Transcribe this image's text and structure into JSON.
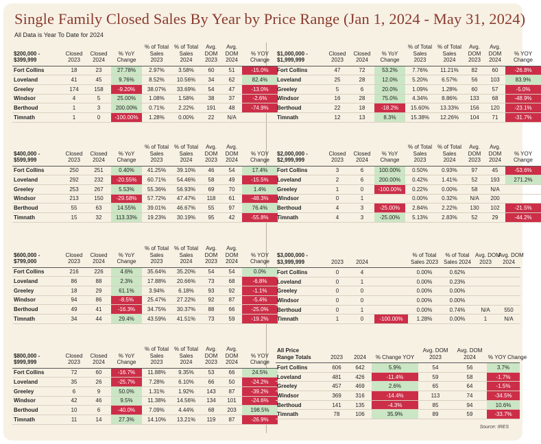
{
  "header": {
    "title": "Single Family Closed Sales By Year by Price Range (Jan 1, 2024 - May 31, 2024)",
    "subtitle": "All Data is Year To Date for 2024"
  },
  "source": "Source: IRES",
  "blocks": [
    {
      "id": "200k",
      "headers": [
        "$200,000 -\n$399,999",
        "Closed\n2023",
        "Closed\n2024",
        "% YoY\nChange",
        "% of Total\nSales\n2023",
        "% of Total\nSales\n2024",
        "Avg.\nDOM\n2023",
        "Avg.\nDOM\n2024",
        "% YOY\nChange"
      ],
      "rows": [
        {
          "cells": [
            "Fort Collins",
            "18",
            "23",
            "27.78%",
            "2.97%",
            "3.58%",
            "60",
            "51",
            "-15.0%"
          ],
          "yoy": "pos",
          "yoy2": "neg"
        },
        {
          "cells": [
            "Loveland",
            "41",
            "45",
            "9.76%",
            "8.52%",
            "10.56%",
            "34",
            "62",
            "82.4%"
          ],
          "yoy": "pos",
          "yoy2": "pos"
        },
        {
          "cells": [
            "Greeley",
            "174",
            "158",
            "-9.20%",
            "38.07%",
            "33.69%",
            "54",
            "47",
            "-13.0%"
          ],
          "yoy": "neg",
          "yoy2": "neg"
        },
        {
          "cells": [
            "Windsor",
            "4",
            "5",
            "25.00%",
            "1.08%",
            "1.58%",
            "38",
            "37",
            "-2.6%"
          ],
          "yoy": "pos",
          "yoy2": "neg"
        },
        {
          "cells": [
            "Berthoud",
            "1",
            "3",
            "200.00%",
            "0.71%",
            "2.22%",
            "191",
            "48",
            "-74.9%"
          ],
          "yoy": "pos",
          "yoy2": "neg"
        },
        {
          "cells": [
            "Timnath",
            "1",
            "0",
            "-100.00%",
            "1.28%",
            "0.00%",
            "22",
            "N/A",
            ""
          ],
          "yoy": "neg",
          "yoy2": ""
        }
      ]
    },
    {
      "id": "1m",
      "headers": [
        "$1,000,000 -\n$1,999,999",
        "Closed\n2023",
        "Closed\n2024",
        "% YoY\nChange",
        "% of Total\nSales\n2023",
        "% of Total\nSales\n2024",
        "Avg.\nDOM\n2023",
        "Avg.\nDOM\n2024",
        "% YOY\nChange"
      ],
      "rows": [
        {
          "cells": [
            "Fort Collins",
            "47",
            "72",
            "53.2%",
            "7.76%",
            "11.21%",
            "82",
            "60",
            "-26.8%"
          ],
          "yoy": "pos",
          "yoy2": "neg"
        },
        {
          "cells": [
            "Loveland",
            "25",
            "28",
            "12.0%",
            "5.20%",
            "6.57%",
            "56",
            "103",
            "83.9%"
          ],
          "yoy": "pos",
          "yoy2": "pos"
        },
        {
          "cells": [
            "Greeley",
            "5",
            "6",
            "20.0%",
            "1.09%",
            "1.28%",
            "60",
            "57",
            "-5.0%"
          ],
          "yoy": "pos",
          "yoy2": "neg"
        },
        {
          "cells": [
            "Windsor",
            "16",
            "28",
            "75.0%",
            "4.34%",
            "8.86%",
            "133",
            "68",
            "-48.9%"
          ],
          "yoy": "pos",
          "yoy2": "neg"
        },
        {
          "cells": [
            "Berthoud",
            "22",
            "18",
            "-18.2%",
            "15.60%",
            "13.33%",
            "156",
            "120",
            "-23.1%"
          ],
          "yoy": "neg",
          "yoy2": "neg"
        },
        {
          "cells": [
            "Timnath",
            "12",
            "13",
            "8.3%",
            "15.38%",
            "12.26%",
            "104",
            "71",
            "-31.7%"
          ],
          "yoy": "pos",
          "yoy2": "neg"
        }
      ]
    },
    {
      "id": "400k",
      "headers": [
        "$400,000 -\n$599,999",
        "Closed\n2023",
        "Closed\n2024",
        "% YoY\nChange",
        "% of Total\nSales\n2023",
        "% of Total\nSales\n2024",
        "Avg.\nDOM\n2023",
        "Avg.\nDOM\n2024",
        "% YOY\nChange"
      ],
      "rows": [
        {
          "cells": [
            "Fort Collins",
            "250",
            "251",
            "0.40%",
            "41.25%",
            "39.10%",
            "46",
            "54",
            "17.4%"
          ],
          "yoy": "pos",
          "yoy2": "pos"
        },
        {
          "cells": [
            "Loveland",
            "292",
            "232",
            "-20.55%",
            "60.71%",
            "54.46%",
            "58",
            "49",
            "-15.5%"
          ],
          "yoy": "neg",
          "yoy2": "neg"
        },
        {
          "cells": [
            "Greeley",
            "253",
            "267",
            "5.53%",
            "55.36%",
            "56.93%",
            "69",
            "70",
            "1.4%"
          ],
          "yoy": "pos",
          "yoy2": "pos"
        },
        {
          "cells": [
            "Windsor",
            "213",
            "150",
            "-29.58%",
            "57.72%",
            "47.47%",
            "118",
            "61",
            "-48.3%"
          ],
          "yoy": "neg",
          "yoy2": "neg"
        },
        {
          "cells": [
            "Berthoud",
            "55",
            "63",
            "14.55%",
            "39.01%",
            "46.67%",
            "55",
            "97",
            "76.4%"
          ],
          "yoy": "pos",
          "yoy2": "pos"
        },
        {
          "cells": [
            "Timnath",
            "15",
            "32",
            "113.33%",
            "19.23%",
            "30.19%",
            "95",
            "42",
            "-55.8%"
          ],
          "yoy": "pos",
          "yoy2": "neg"
        }
      ]
    },
    {
      "id": "2m",
      "headers": [
        "$2,000,000 -\n$2,999,999",
        "Closed\n2023",
        "Closed\n2024",
        "% YoY\nChange",
        "% of Total\nSales\n2023",
        "% of Total\nSales\n2024",
        "Avg.\nDOM\n2023",
        "Avg.\nDOM\n2024",
        "% YOY\nChange"
      ],
      "rows": [
        {
          "cells": [
            "Fort Collins",
            "3",
            "6",
            "100.00%",
            "0.50%",
            "0.93%",
            "97",
            "45",
            "-53.6%"
          ],
          "yoy": "pos",
          "yoy2": "neg"
        },
        {
          "cells": [
            "Loveland",
            "2",
            "6",
            "200.00%",
            "0.42%",
            "1.41%",
            "52",
            "193",
            "271.2%"
          ],
          "yoy": "pos",
          "yoy2": "pos"
        },
        {
          "cells": [
            "Greeley",
            "1",
            "0",
            "-100.00%",
            "0.22%",
            "0.00%",
            "58",
            "N/A",
            ""
          ],
          "yoy": "neg",
          "yoy2": ""
        },
        {
          "cells": [
            "Windsor",
            "0",
            "1",
            "",
            "0.00%",
            "0.32%",
            "N/A",
            "200",
            ""
          ],
          "yoy": "",
          "yoy2": ""
        },
        {
          "cells": [
            "Berthoud",
            "4",
            "3",
            "-25.00%",
            "2.84%",
            "2.22%",
            "130",
            "102",
            "-21.5%"
          ],
          "yoy": "neg",
          "yoy2": "neg"
        },
        {
          "cells": [
            "Timnath",
            "4",
            "3",
            "-25.00%",
            "5.13%",
            "2.83%",
            "52",
            "29",
            "-44.2%"
          ],
          "yoy": "pos",
          "yoy2": "neg"
        }
      ]
    },
    {
      "id": "600k",
      "headers": [
        "$600,000 -\n$799,000",
        "Closed\n2023",
        "Closed\n2024",
        "% YoY\nChange",
        "% of Total\nSales\n2023",
        "% of Total\nSales\n2024",
        "Avg.\nDOM\n2023",
        "Avg.\nDOM\n2024",
        "% YOY\nChange"
      ],
      "rows": [
        {
          "cells": [
            "Fort Collins",
            "216",
            "226",
            "4.6%",
            "35.64%",
            "35.20%",
            "54",
            "54",
            "0.0%"
          ],
          "yoy": "pos",
          "yoy2": "pos"
        },
        {
          "cells": [
            "Loveland",
            "86",
            "88",
            "2.3%",
            "17.88%",
            "20.66%",
            "73",
            "68",
            "-6.8%"
          ],
          "yoy": "pos",
          "yoy2": "neg"
        },
        {
          "cells": [
            "Greeley",
            "18",
            "29",
            "61.1%",
            "3.94%",
            "6.18%",
            "93",
            "92",
            "-1.1%"
          ],
          "yoy": "pos",
          "yoy2": "neg"
        },
        {
          "cells": [
            "Windsor",
            "94",
            "86",
            "-8.5%",
            "25.47%",
            "27.22%",
            "92",
            "87",
            "-5.4%"
          ],
          "yoy": "neg",
          "yoy2": "neg"
        },
        {
          "cells": [
            "Berthoud",
            "49",
            "41",
            "-16.3%",
            "34.75%",
            "30.37%",
            "88",
            "66",
            "-25.0%"
          ],
          "yoy": "neg",
          "yoy2": "neg"
        },
        {
          "cells": [
            "Timnath",
            "34",
            "44",
            "29.4%",
            "43.59%",
            "41.51%",
            "73",
            "59",
            "-19.2%"
          ],
          "yoy": "pos",
          "yoy2": "neg"
        }
      ]
    },
    {
      "id": "3m",
      "headers": [
        "$3,000,000 -\n$3,999,999",
        "2023",
        "2024",
        "",
        "% of Total\nSales 2023",
        "% of Total\nSales 2024",
        "Avg. DOM\n2023",
        "Avg. DOM\n2024"
      ],
      "rows": [
        {
          "cells": [
            "Fort Collins",
            "0",
            "4",
            "",
            "0.00%",
            "0.62%",
            "",
            ""
          ],
          "yoy": ""
        },
        {
          "cells": [
            "Loveland",
            "0",
            "1",
            "",
            "0.00%",
            "0.23%",
            "",
            ""
          ],
          "yoy": ""
        },
        {
          "cells": [
            "Greeley",
            "0",
            "0",
            "",
            "0.00%",
            "0.00%",
            "",
            ""
          ],
          "yoy": ""
        },
        {
          "cells": [
            "Windsor",
            "0",
            "0",
            "",
            "0.00%",
            "0.00%",
            "",
            ""
          ],
          "yoy": ""
        },
        {
          "cells": [
            "Berthoud",
            "0",
            "1",
            "",
            "0.00%",
            "0.74%",
            "N/A",
            "550"
          ],
          "yoy": ""
        },
        {
          "cells": [
            "Timnath",
            "1",
            "0",
            "-100.00%",
            "1.28%",
            "0.00%",
            "1",
            "N/A"
          ],
          "yoy": "neg"
        }
      ]
    },
    {
      "id": "800k",
      "headers": [
        "$800,000 -\n$999,999",
        "Closed\n2023",
        "Closed\n2024",
        "% YoY\nChange",
        "% of Total\nSales\n2023",
        "% of Total\nSales\n2024",
        "Avg.\nDOM\n2023",
        "Avg.\nDOM\n2024",
        "% YOY\nChange"
      ],
      "rows": [
        {
          "cells": [
            "Fort Collins",
            "72",
            "60",
            "-16.7%",
            "11.88%",
            "9.35%",
            "53",
            "66",
            "24.5%"
          ],
          "yoy": "neg",
          "yoy2": "pos"
        },
        {
          "cells": [
            "Loveland",
            "35",
            "26",
            "-25.7%",
            "7.28%",
            "6.10%",
            "66",
            "50",
            "-24.2%"
          ],
          "yoy": "neg",
          "yoy2": "neg"
        },
        {
          "cells": [
            "Greeley",
            "6",
            "9",
            "50.0%",
            "1.31%",
            "1.92%",
            "143",
            "87",
            "-39.2%"
          ],
          "yoy": "pos",
          "yoy2": "neg"
        },
        {
          "cells": [
            "Windsor",
            "42",
            "46",
            "9.5%",
            "11.38%",
            "14.56%",
            "134",
            "101",
            "-24.6%"
          ],
          "yoy": "pos",
          "yoy2": "neg"
        },
        {
          "cells": [
            "Berthoud",
            "10",
            "6",
            "-40.0%",
            "7.09%",
            "4.44%",
            "68",
            "203",
            "198.5%"
          ],
          "yoy": "neg",
          "yoy2": "pos"
        },
        {
          "cells": [
            "Timnath",
            "11",
            "14",
            "27.3%",
            "14.10%",
            "13.21%",
            "119",
            "87",
            "-26.9%"
          ],
          "yoy": "pos",
          "yoy2": "neg"
        }
      ]
    },
    {
      "id": "all",
      "headers": [
        "All Price\nRange Totals",
        "2023",
        "2024",
        "% Change YOY",
        "Avg. DOM\n2023",
        "Avg. DOM\n2024",
        "% YOY Change"
      ],
      "rows": [
        {
          "cells": [
            "Fort Collins",
            "606",
            "642",
            "5.9%",
            "54",
            "56",
            "3.7%"
          ],
          "yoy": "pos",
          "yoy2": "pos"
        },
        {
          "cells": [
            "Loveland",
            "481",
            "426",
            "-11.4%",
            "59",
            "58",
            "-1.7%"
          ],
          "yoy": "neg",
          "yoy2": "neg"
        },
        {
          "cells": [
            "Greeley",
            "457",
            "469",
            "2.6%",
            "65",
            "64",
            "-1.5%"
          ],
          "yoy": "pos",
          "yoy2": "neg"
        },
        {
          "cells": [
            "Windsor",
            "369",
            "316",
            "-14.4%",
            "113",
            "74",
            "-34.5%"
          ],
          "yoy": "neg",
          "yoy2": "neg"
        },
        {
          "cells": [
            "Berthoud",
            "141",
            "135",
            "-4.3%",
            "85",
            "94",
            "10.6%"
          ],
          "yoy": "neg",
          "yoy2": "pos"
        },
        {
          "cells": [
            "Timnath",
            "78",
            "106",
            "35.9%",
            "89",
            "59",
            "-33.7%"
          ],
          "yoy": "pos",
          "yoy2": "neg"
        }
      ]
    }
  ]
}
